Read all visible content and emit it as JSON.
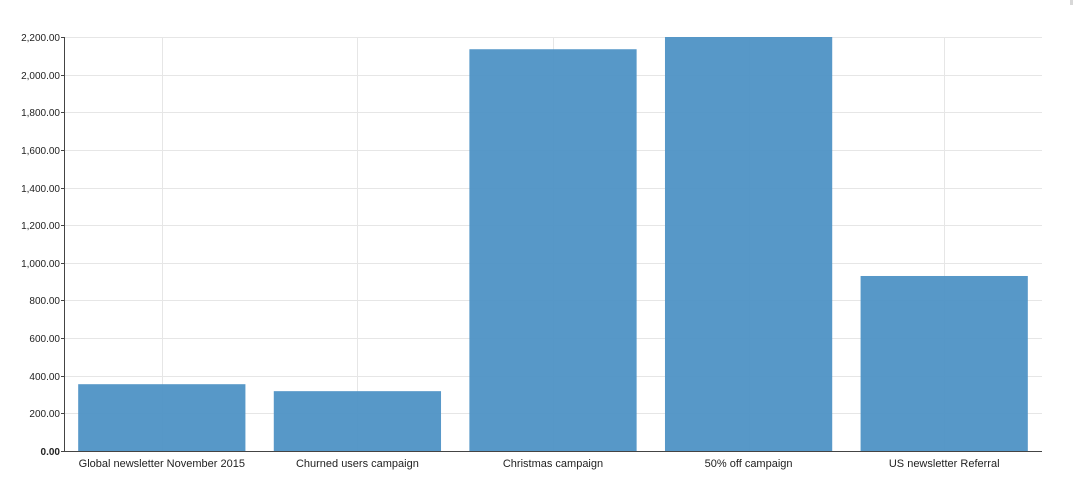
{
  "chart_data": {
    "type": "bar",
    "categories": [
      "Global newsletter November 2015",
      "Churned users campaign",
      "Christmas campaign",
      "50% off campaign",
      "US newsletter Referral"
    ],
    "values": [
      355,
      318,
      2135,
      2200,
      930
    ],
    "ylim": [
      0,
      2200
    ],
    "yticks": [
      0,
      200,
      400,
      600,
      800,
      1000,
      1200,
      1400,
      1600,
      1800,
      2000,
      2200
    ],
    "ytick_labels": [
      "0.00",
      "200.00",
      "400.00",
      "600.00",
      "800.00",
      "1,000.00",
      "1,200.00",
      "1,400.00",
      "1,600.00",
      "1,800.00",
      "2,000.00",
      "2,200.00"
    ],
    "grid": true,
    "colors": {
      "bar": "#4a90c4",
      "grid": "#e6e6e6",
      "axis": "#444444"
    }
  }
}
